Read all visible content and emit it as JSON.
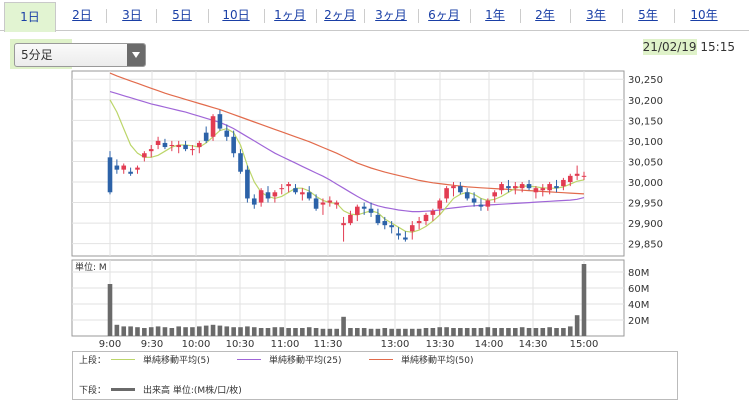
{
  "tabs": [
    {
      "label": "1日",
      "active": true
    },
    {
      "label": "2日"
    },
    {
      "label": "3日"
    },
    {
      "label": "5日"
    },
    {
      "label": "10日"
    },
    {
      "label": "1ヶ月"
    },
    {
      "label": "2ヶ月"
    },
    {
      "label": "3ヶ月"
    },
    {
      "label": "6ヶ月"
    },
    {
      "label": "1年"
    },
    {
      "label": "2年"
    },
    {
      "label": "3年"
    },
    {
      "label": "5年"
    },
    {
      "label": "10年"
    }
  ],
  "interval_select": {
    "value": "5分足"
  },
  "datetime": {
    "date": "21/02/19",
    "time": "15:15"
  },
  "colors": {
    "up": "#e23c52",
    "down": "#2c62a8",
    "ma5": "#bcd66a",
    "ma25": "#a066d8",
    "ma50": "#e26b4c",
    "volume": "#6a6a6a",
    "highlight": "#dff2c9"
  },
  "legend": {
    "upper_label": "上段：",
    "lower_label": "下段：",
    "ma5": "単純移動平均(5)",
    "ma25": "単純移動平均(25)",
    "ma50": "単純移動平均(50)",
    "volume": "出来高 単位:(M株/口/枚)"
  },
  "chart_data": {
    "type": "candlestick",
    "time_ticks": [
      "9:00",
      "9:30",
      "10:00",
      "10:30",
      "11:00",
      "11:30",
      "13:00",
      "13:30",
      "14:00",
      "14:30",
      "15:00"
    ],
    "price_ticks": [
      29850,
      29900,
      29950,
      30000,
      30050,
      30100,
      30150,
      30200,
      30250
    ],
    "price_range": [
      29820,
      30270
    ],
    "volume_unit_label": "単位: M",
    "volume_ticks": [
      "20M",
      "40M",
      "60M",
      "80M"
    ],
    "volume_range": [
      0,
      95
    ],
    "candles": [
      [
        30060,
        30075,
        29970,
        29975
      ],
      [
        30040,
        30055,
        30020,
        30030
      ],
      [
        30030,
        30045,
        30020,
        30040
      ],
      [
        30025,
        30035,
        30015,
        30020
      ],
      [
        30030,
        30040,
        30020,
        30035
      ],
      [
        30060,
        30075,
        30050,
        30070
      ],
      [
        30075,
        30090,
        30060,
        30080
      ],
      [
        30090,
        30110,
        30080,
        30100
      ],
      [
        30095,
        30105,
        30080,
        30085
      ],
      [
        30090,
        30100,
        30075,
        30090
      ],
      [
        30085,
        30100,
        30070,
        30090
      ],
      [
        30090,
        30100,
        30075,
        30080
      ],
      [
        30080,
        30090,
        30065,
        30080
      ],
      [
        30085,
        30100,
        30070,
        30095
      ],
      [
        30120,
        30135,
        30095,
        30100
      ],
      [
        30110,
        30165,
        30100,
        30160
      ],
      [
        30165,
        30175,
        30125,
        30130
      ],
      [
        30125,
        30140,
        30100,
        30110
      ],
      [
        30110,
        30125,
        30060,
        30070
      ],
      [
        30070,
        30080,
        30020,
        30025
      ],
      [
        30030,
        30040,
        29950,
        29960
      ],
      [
        29960,
        29970,
        29935,
        29945
      ],
      [
        29950,
        29985,
        29940,
        29980
      ],
      [
        29975,
        29990,
        29950,
        29960
      ],
      [
        29965,
        29980,
        29950,
        29975
      ],
      [
        29985,
        29995,
        29970,
        29985
      ],
      [
        29990,
        30000,
        29975,
        29995
      ],
      [
        29985,
        29995,
        29970,
        29975
      ],
      [
        29970,
        29985,
        29955,
        29975
      ],
      [
        29975,
        29990,
        29955,
        29960
      ],
      [
        29960,
        29970,
        29930,
        29935
      ],
      [
        29945,
        29960,
        29920,
        29950
      ],
      [
        29950,
        29965,
        29940,
        29955
      ],
      [
        29945,
        29955,
        29935,
        29950
      ],
      [
        29895,
        29915,
        29855,
        29900
      ],
      [
        29900,
        29930,
        29895,
        29920
      ],
      [
        29920,
        29945,
        29905,
        29940
      ],
      [
        29940,
        29950,
        29920,
        29935
      ],
      [
        29935,
        29950,
        29915,
        29925
      ],
      [
        29920,
        29935,
        29895,
        29900
      ],
      [
        29905,
        29915,
        29885,
        29895
      ],
      [
        29895,
        29905,
        29875,
        29890
      ],
      [
        29875,
        29890,
        29860,
        29870
      ],
      [
        29865,
        29880,
        29855,
        29860
      ],
      [
        29880,
        29905,
        29860,
        29895
      ],
      [
        29900,
        29915,
        29885,
        29905
      ],
      [
        29905,
        29925,
        29895,
        29920
      ],
      [
        29920,
        29935,
        29905,
        29930
      ],
      [
        29935,
        29960,
        29920,
        29955
      ],
      [
        29960,
        29990,
        29950,
        29985
      ],
      [
        29985,
        30000,
        29965,
        29990
      ],
      [
        29990,
        30000,
        29970,
        29975
      ],
      [
        29975,
        29985,
        29955,
        29960
      ],
      [
        29960,
        29975,
        29940,
        29950
      ],
      [
        29945,
        29960,
        29930,
        29940
      ],
      [
        29940,
        29960,
        29930,
        29955
      ],
      [
        29965,
        29980,
        29950,
        29975
      ],
      [
        29980,
        30000,
        29970,
        29995
      ],
      [
        29990,
        30005,
        29975,
        29985
      ],
      [
        29985,
        30000,
        29970,
        29990
      ],
      [
        29985,
        30000,
        29975,
        29995
      ],
      [
        29995,
        30005,
        29980,
        29985
      ],
      [
        29975,
        29990,
        29960,
        29985
      ],
      [
        29980,
        29995,
        29965,
        29985
      ],
      [
        29980,
        30000,
        29970,
        29995
      ],
      [
        29990,
        30005,
        29975,
        29985
      ],
      [
        29990,
        30010,
        29980,
        30005
      ],
      [
        30000,
        30020,
        29990,
        30015
      ],
      [
        30015,
        30040,
        30005,
        30020
      ],
      [
        30015,
        30025,
        30005,
        30015
      ]
    ],
    "volumes": [
      65,
      14,
      12,
      12,
      11,
      10,
      11,
      12,
      11,
      10,
      12,
      11,
      11,
      12,
      13,
      14,
      13,
      12,
      11,
      11,
      12,
      11,
      10,
      10,
      11,
      11,
      10,
      10,
      10,
      11,
      10,
      9,
      9,
      9,
      24,
      10,
      10,
      10,
      9,
      9,
      10,
      9,
      9,
      9,
      9,
      9,
      10,
      10,
      11,
      11,
      10,
      10,
      10,
      10,
      10,
      11,
      10,
      10,
      10,
      10,
      11,
      10,
      10,
      10,
      11,
      10,
      10,
      12,
      26,
      90
    ],
    "ma5": [
      30200,
      30170,
      30130,
      30090,
      30070,
      30060,
      30060,
      30065,
      30075,
      30085,
      30090,
      30090,
      30088,
      30085,
      30095,
      30110,
      30125,
      30130,
      30120,
      30090,
      30040,
      30000,
      29975,
      29965,
      29960,
      29965,
      29975,
      29985,
      29985,
      29978,
      29965,
      29955,
      29950,
      29948,
      29930,
      29922,
      29920,
      29925,
      29930,
      29925,
      29910,
      29900,
      29890,
      29880,
      29878,
      29883,
      29892,
      29905,
      29920,
      29940,
      29960,
      29970,
      29975,
      29970,
      29960,
      29955,
      29958,
      29965,
      29975,
      29985,
      29990,
      29990,
      29988,
      29986,
      29985,
      29985,
      29988,
      29995,
      30002,
      30005
    ],
    "ma25": [
      30220,
      30215,
      30210,
      30205,
      30200,
      30195,
      30190,
      30186,
      30182,
      30178,
      30174,
      30170,
      30165,
      30160,
      30155,
      30150,
      30145,
      30138,
      30130,
      30120,
      30110,
      30100,
      30090,
      30080,
      30070,
      30062,
      30054,
      30046,
      30038,
      30030,
      30022,
      30014,
      30005,
      29995,
      29985,
      29975,
      29965,
      29956,
      29948,
      29942,
      29938,
      29935,
      29932,
      29930,
      29928,
      29928,
      29929,
      29930,
      29932,
      29935,
      29937,
      29939,
      29941,
      29942,
      29943,
      29944,
      29945,
      29946,
      29947,
      29948,
      29949,
      29950,
      29951,
      29952,
      29953,
      29954,
      29955,
      29956,
      29958,
      29962
    ],
    "ma50": [
      30265,
      30258,
      30252,
      30246,
      30240,
      30234,
      30228,
      30222,
      30216,
      30211,
      30206,
      30201,
      30196,
      30191,
      30186,
      30181,
      30176,
      30170,
      30164,
      30158,
      30152,
      30146,
      30140,
      30134,
      30128,
      30122,
      30116,
      30110,
      30104,
      30098,
      30091,
      30084,
      30077,
      30070,
      30062,
      30054,
      30046,
      30040,
      30034,
      30029,
      30024,
      30020,
      30016,
      30012,
      30008,
      30004,
      30001,
      29998,
      29996,
      29994,
      29992,
      29990,
      29988,
      29987,
      29986,
      29985,
      29984,
      29983,
      29982,
      29981,
      29980,
      29979,
      29978,
      29977,
      29976,
      29975,
      29974,
      29973,
      29972,
      29971
    ]
  }
}
